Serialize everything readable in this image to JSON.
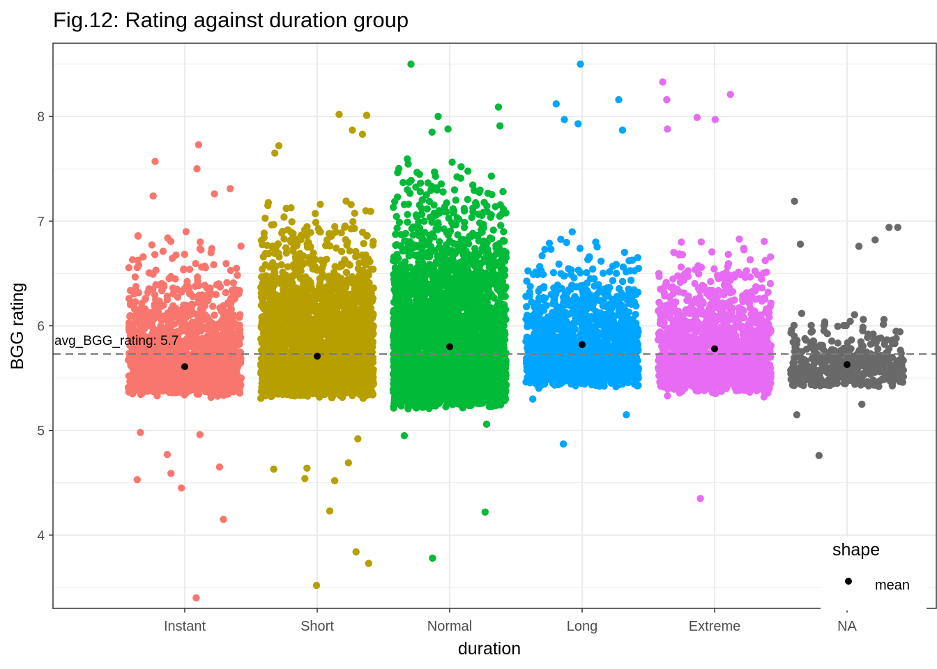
{
  "chart_data": {
    "type": "scatter",
    "title": "Fig.12: Rating against duration group",
    "xlabel": "duration",
    "ylabel": "BGG rating",
    "categories": [
      "Instant",
      "Short",
      "Normal",
      "Long",
      "Extreme",
      "NA"
    ],
    "category_colors": [
      "#F8766D",
      "#B79F00",
      "#00BA38",
      "#00A5FF",
      "#E76BF3",
      "#696969"
    ],
    "yticks": [
      4,
      5,
      6,
      7,
      8
    ],
    "ylim": [
      3.3,
      8.7
    ],
    "grid": true,
    "means": [
      5.61,
      5.71,
      5.8,
      5.82,
      5.78,
      5.63
    ],
    "reference_line": {
      "value": 5.73,
      "label": "avg_BGG_rating:  5.7",
      "style": "dashed"
    },
    "legend": {
      "title": "shape",
      "items": [
        "mean"
      ],
      "placement": "right-bottom"
    },
    "series": [
      {
        "category": "Instant",
        "core_range": [
          5.3,
          6.6
        ],
        "density": "medium",
        "outliers": [
          7.73,
          7.57,
          7.5,
          7.31,
          7.26,
          7.24,
          4.98,
          4.96,
          4.77,
          4.65,
          4.59,
          4.53,
          4.45,
          4.15,
          3.4
        ]
      },
      {
        "category": "Short",
        "core_range": [
          5.3,
          6.9
        ],
        "density": "high",
        "outliers": [
          8.02,
          8.01,
          7.87,
          7.83,
          7.72,
          7.65,
          4.92,
          4.69,
          4.64,
          4.63,
          4.54,
          4.52,
          4.23,
          3.84,
          3.73,
          3.52
        ]
      },
      {
        "category": "Normal",
        "core_range": [
          5.2,
          7.3
        ],
        "density": "very high",
        "outliers": [
          8.5,
          8.09,
          8.0,
          7.91,
          7.88,
          7.85,
          5.06,
          4.95,
          4.22,
          3.78
        ]
      },
      {
        "category": "Long",
        "core_range": [
          5.4,
          6.6
        ],
        "density": "medium",
        "outliers": [
          8.5,
          8.16,
          8.12,
          7.97,
          7.93,
          7.87,
          5.3,
          5.15,
          4.87
        ]
      },
      {
        "category": "Extreme",
        "core_range": [
          5.35,
          6.6
        ],
        "density": "medium",
        "outliers": [
          8.33,
          8.21,
          8.16,
          7.99,
          7.97,
          7.88,
          5.33,
          5.32,
          4.35
        ]
      },
      {
        "category": "NA",
        "core_range": [
          5.4,
          6.0
        ],
        "density": "low",
        "outliers": [
          7.19,
          6.94,
          6.94,
          6.82,
          6.78,
          6.76,
          5.25,
          5.15,
          4.76
        ]
      }
    ]
  }
}
